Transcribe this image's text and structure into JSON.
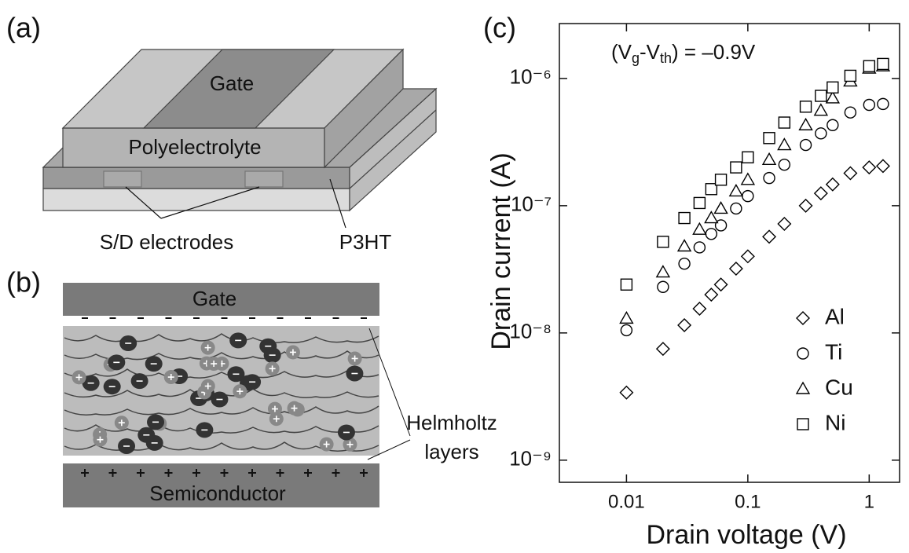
{
  "panel_a": {
    "label": "(a)",
    "gate": "Gate",
    "polyelectrolyte": "Polyelectrolyte",
    "electrodes": "S/D electrodes",
    "semiconductor": "P3HT"
  },
  "panel_b": {
    "label": "(b)",
    "gate": "Gate",
    "semiconductor": "Semiconductor",
    "helmholtz": [
      "Helmholtz",
      "layers"
    ]
  },
  "chart_data": {
    "type": "scatter",
    "panel_label": "(c)",
    "annotation": [
      "(V",
      "g",
      "-V",
      "th",
      ") = –0.9V"
    ],
    "x_label": "Drain voltage (V)",
    "y_label": "Drain current (A)",
    "log_x": true,
    "log_y": true,
    "legend": "lower right",
    "xlim": [
      0.0028,
      1.78
    ],
    "ylim": [
      6.7e-10,
      2.7e-06
    ],
    "xticks": [
      0.01,
      0.1,
      1
    ],
    "yticks": [
      {
        "value": 1e-09,
        "label": "10⁻⁹"
      },
      {
        "value": 1e-08,
        "label": "10⁻⁸"
      },
      {
        "value": 1e-07,
        "label": "10⁻⁷"
      },
      {
        "value": 1e-06,
        "label": "10⁻⁶"
      }
    ],
    "x": [
      0.01,
      0.02,
      0.03,
      0.04,
      0.05,
      0.06,
      0.08,
      0.1,
      0.15,
      0.2,
      0.3,
      0.4,
      0.5,
      0.7,
      1.0,
      1.3
    ],
    "series": [
      {
        "name": "Al",
        "marker": "diamond",
        "color": "#000000",
        "values": [
          3.4e-09,
          7.5e-09,
          1.15e-08,
          1.55e-08,
          2e-08,
          2.4e-08,
          3.2e-08,
          4e-08,
          5.7e-08,
          7.2e-08,
          1e-07,
          1.25e-07,
          1.47e-07,
          1.8e-07,
          2e-07,
          2.05e-07
        ]
      },
      {
        "name": "Ti",
        "marker": "circle",
        "color": "#000000",
        "values": [
          1.05e-08,
          2.3e-08,
          3.5e-08,
          4.7e-08,
          6e-08,
          7e-08,
          9.5e-08,
          1.19e-07,
          1.65e-07,
          2.1e-07,
          3e-07,
          3.7e-07,
          4.3e-07,
          5.4e-07,
          6.2e-07,
          6.3e-07
        ]
      },
      {
        "name": "Cu",
        "marker": "triangle",
        "color": "#000000",
        "values": [
          1.3e-08,
          3e-08,
          4.8e-08,
          6.5e-08,
          8e-08,
          9.5e-08,
          1.3e-07,
          1.6e-07,
          2.3e-07,
          3e-07,
          4.3e-07,
          5.6e-07,
          7e-07,
          9.5e-07,
          1.2e-06,
          1.25e-06
        ]
      },
      {
        "name": "Ni",
        "marker": "square",
        "color": "#000000",
        "values": [
          2.4e-08,
          5.2e-08,
          8e-08,
          1.05e-07,
          1.35e-07,
          1.6e-07,
          2e-07,
          2.4e-07,
          3.4e-07,
          4.5e-07,
          6e-07,
          7.3e-07,
          8.5e-07,
          1.05e-06,
          1.25e-06,
          1.3e-06
        ]
      }
    ]
  }
}
